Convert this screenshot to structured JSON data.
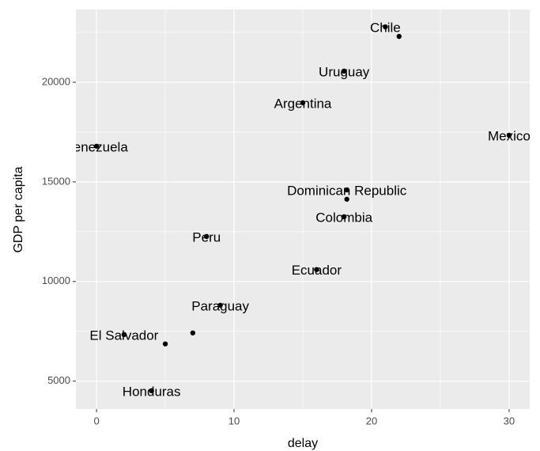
{
  "chart_data": {
    "type": "scatter",
    "x_label": "delay",
    "y_label": "GDP per capita",
    "x": [
      21,
      22,
      18,
      15,
      30,
      0,
      18.2,
      18.2,
      18,
      8,
      16,
      9,
      7,
      2,
      5,
      4
    ],
    "values": [
      22780,
      22300,
      20560,
      18970,
      17340,
      16790,
      14600,
      14130,
      13250,
      12260,
      10600,
      8810,
      7420,
      7340,
      6870,
      4520
    ],
    "labels": [
      "Chile",
      null,
      "Uruguay",
      "Argentina",
      "Mexico",
      "Venezuela",
      "Dominican Republic",
      null,
      "Colombia",
      "Peru",
      "Ecuador",
      "Paraguay",
      null,
      "El Salvador",
      null,
      "Honduras"
    ],
    "color": "#000000",
    "xlim": [
      -1.5,
      31.5
    ],
    "xticks": [
      0,
      10,
      20,
      30
    ],
    "ylim": [
      3600,
      23650
    ],
    "yticks": [
      5000,
      10000,
      15000,
      20000
    ],
    "grid": true
  }
}
